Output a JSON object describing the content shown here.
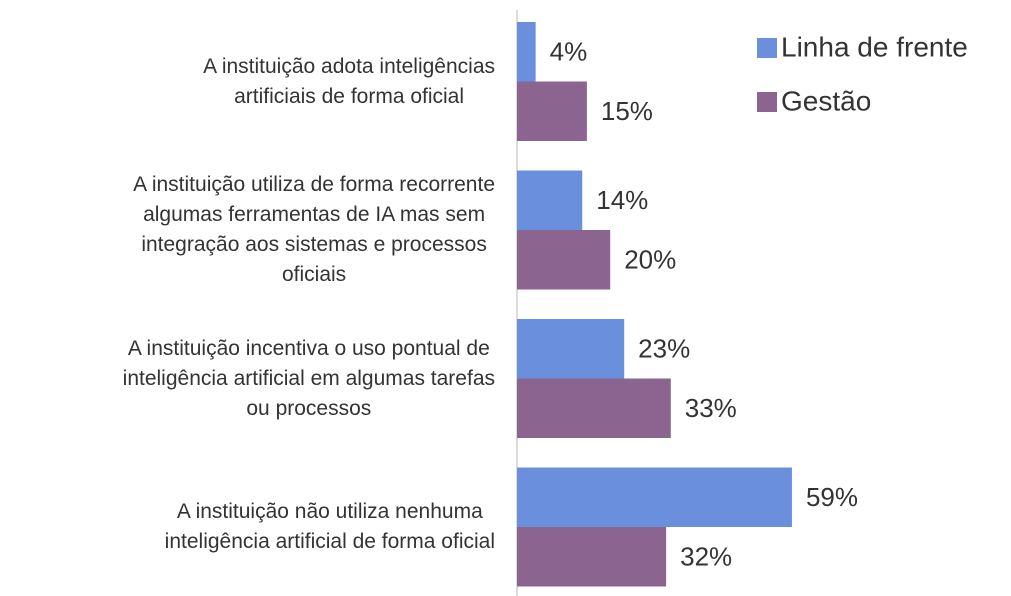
{
  "chart_data": {
    "type": "hbar",
    "categories": [
      "A instituição adota inteligências\nartificiais de forma oficial",
      "A instituição utiliza de forma recorrente\nalgumas ferramentas de IA mas sem\nintegração aos sistemas e processos\noficiais",
      "A instituição incentiva o uso pontual de\ninteligência artificial em algumas tarefas\nou processos",
      "A instituição não utiliza nenhuma\ninteligência artificial de forma oficial"
    ],
    "series": [
      {
        "name": "Linha de frente",
        "color": "#6a8fdc",
        "values": [
          4,
          14,
          23,
          59
        ],
        "value_labels": [
          "4%",
          "14%",
          "23%",
          "59%"
        ]
      },
      {
        "name": "Gestão",
        "color": "#8b6590",
        "values": [
          15,
          20,
          33,
          32
        ],
        "value_labels": [
          "15%",
          "20%",
          "33%",
          "32%"
        ]
      }
    ],
    "xlim": [
      0,
      100
    ],
    "legend": "top-right"
  }
}
